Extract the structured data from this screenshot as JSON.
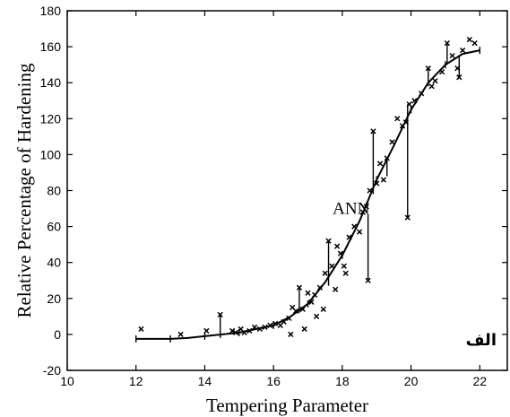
{
  "chart_data": {
    "type": "scatter",
    "title": "",
    "xlabel": "Tempering Parameter",
    "ylabel": "Relative Percentage of Hardening",
    "annotation": "ANN",
    "panel_label": "الف",
    "xlim": [
      10,
      22.8
    ],
    "ylim": [
      -20,
      180
    ],
    "xticks": [
      10,
      12,
      14,
      16,
      18,
      20,
      22
    ],
    "yticks": [
      -20,
      0,
      20,
      40,
      60,
      80,
      100,
      120,
      140,
      160,
      180
    ],
    "grid": false,
    "legend": "none",
    "series": [
      {
        "kind": "measured",
        "marker": "x",
        "points": [
          [
            12.15,
            3
          ],
          [
            13.3,
            0
          ],
          [
            14.05,
            2
          ],
          [
            14.45,
            11
          ],
          [
            14.8,
            2
          ],
          [
            14.9,
            1
          ],
          [
            15.05,
            3
          ],
          [
            15.15,
            1
          ],
          [
            15.3,
            2
          ],
          [
            15.45,
            4
          ],
          [
            15.6,
            3
          ],
          [
            15.75,
            4
          ],
          [
            15.9,
            5
          ],
          [
            16.05,
            6
          ],
          [
            16.2,
            5
          ],
          [
            16.3,
            7
          ],
          [
            16.45,
            9
          ],
          [
            16.55,
            15
          ],
          [
            16.65,
            13
          ],
          [
            16.75,
            26
          ],
          [
            16.85,
            14
          ],
          [
            17.0,
            23
          ],
          [
            17.1,
            18
          ],
          [
            17.2,
            22
          ],
          [
            17.35,
            26
          ],
          [
            17.5,
            34
          ],
          [
            17.6,
            52
          ],
          [
            17.7,
            38
          ],
          [
            17.85,
            49
          ],
          [
            17.95,
            45
          ],
          [
            18.05,
            38
          ],
          [
            18.2,
            54
          ],
          [
            18.35,
            60
          ],
          [
            18.5,
            57
          ],
          [
            18.6,
            68
          ],
          [
            18.7,
            71
          ],
          [
            18.8,
            80
          ],
          [
            18.9,
            113
          ],
          [
            19.0,
            84
          ],
          [
            19.1,
            95
          ],
          [
            19.2,
            86
          ],
          [
            19.3,
            98
          ],
          [
            19.45,
            107
          ],
          [
            19.6,
            120
          ],
          [
            19.75,
            116
          ],
          [
            19.85,
            118
          ],
          [
            19.95,
            128
          ],
          [
            20.1,
            130
          ],
          [
            20.3,
            134
          ],
          [
            20.5,
            148
          ],
          [
            20.7,
            141
          ],
          [
            20.9,
            146
          ],
          [
            21.05,
            162
          ],
          [
            21.2,
            155
          ],
          [
            21.35,
            148
          ],
          [
            21.5,
            158
          ],
          [
            21.7,
            164
          ],
          [
            21.85,
            162
          ]
        ]
      },
      {
        "kind": "measured-low",
        "marker": "x",
        "points": [
          [
            16.5,
            0
          ],
          [
            16.9,
            3
          ],
          [
            17.25,
            10
          ],
          [
            17.45,
            14
          ],
          [
            17.8,
            25
          ],
          [
            18.1,
            34
          ],
          [
            18.75,
            30
          ],
          [
            19.9,
            65
          ],
          [
            20.6,
            138
          ],
          [
            21.4,
            143
          ]
        ]
      }
    ],
    "fit_line": {
      "name": "ANN",
      "x": [
        12.0,
        12.5,
        13.0,
        13.5,
        14.0,
        14.5,
        15.0,
        15.5,
        16.0,
        16.5,
        17.0,
        17.5,
        18.0,
        18.5,
        19.0,
        19.5,
        20.0,
        20.5,
        21.0,
        21.5,
        22.0
      ],
      "y": [
        -2.5,
        -2.5,
        -2.5,
        -2.0,
        -1.0,
        0.0,
        1.0,
        3.0,
        5.0,
        10.0,
        17.0,
        29.0,
        44.0,
        63.0,
        86.0,
        105.0,
        125.0,
        140.0,
        150.0,
        156.0,
        158.0
      ]
    },
    "error_bars": [
      {
        "x": 14.45,
        "y1": 11,
        "y2": -2
      },
      {
        "x": 16.75,
        "y1": 26,
        "y2": 12
      },
      {
        "x": 17.6,
        "y1": 52,
        "y2": 27
      },
      {
        "x": 18.75,
        "y1": 67,
        "y2": 30
      },
      {
        "x": 18.9,
        "y1": 113,
        "y2": 78
      },
      {
        "x": 19.3,
        "y1": 98,
        "y2": 88
      },
      {
        "x": 19.9,
        "y1": 128,
        "y2": 65
      },
      {
        "x": 20.5,
        "y1": 148,
        "y2": 138
      },
      {
        "x": 21.05,
        "y1": 162,
        "y2": 150
      },
      {
        "x": 21.4,
        "y1": 155,
        "y2": 143
      }
    ]
  }
}
